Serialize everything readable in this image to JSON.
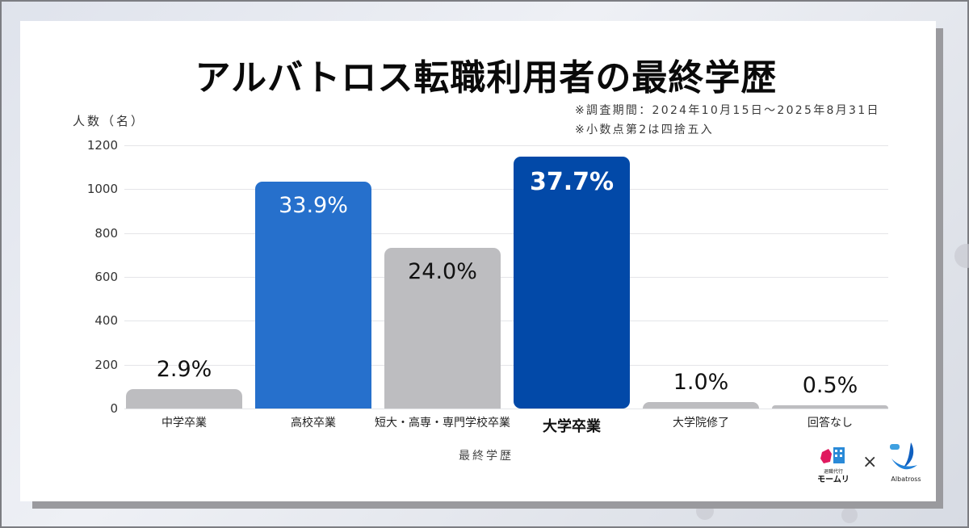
{
  "title": "アルバトロス転職利用者の最終学歴",
  "notes": [
    "※調査期間：2024年10月15日～2025年8月31日",
    "※小数点第2は四捨五入"
  ],
  "colors": {
    "gray_bar": "#bdbdc0",
    "blue_bar": "#2670cc",
    "dark_blue_bar": "#0249a8"
  },
  "logos": {
    "left_small": "退職代行",
    "left_name": "モームリ",
    "separator": "×",
    "right_name": "Albatross"
  },
  "chart_data": {
    "type": "bar",
    "title": "アルバトロス転職利用者の最終学歴",
    "xlabel": "最終学歴",
    "ylabel": "人数（名）",
    "ylim": [
      0,
      1200
    ],
    "yticks": [
      "0",
      "200",
      "400",
      "600",
      "800",
      "1000",
      "1200"
    ],
    "grid": true,
    "legend": "none",
    "categories": [
      "中学卒業",
      "高校卒業",
      "短大・高専・専門学校卒業",
      "大学卒業",
      "大学院修了",
      "回答なし"
    ],
    "values": [
      88,
      1035,
      733,
      1150,
      31,
      15
    ],
    "labels": [
      "2.9%",
      "33.9%",
      "24.0%",
      "37.7%",
      "1.0%",
      "0.5%"
    ],
    "bar_colors": [
      "#bdbdc0",
      "#2670cc",
      "#bdbdc0",
      "#0249a8",
      "#bdbdc0",
      "#bdbdc0"
    ],
    "highlight_index": 3
  }
}
